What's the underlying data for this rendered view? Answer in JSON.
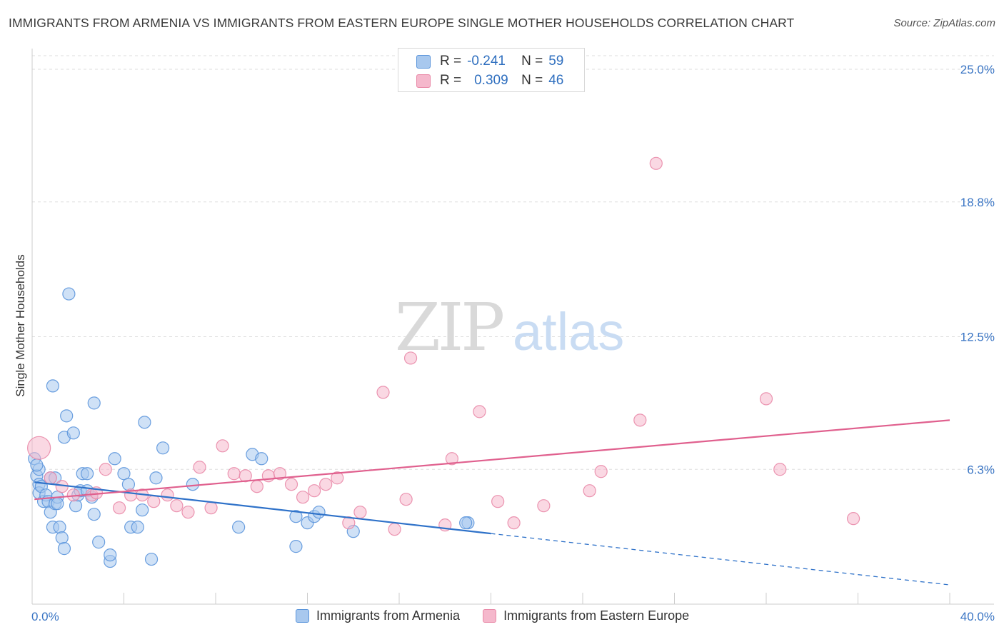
{
  "title": "IMMIGRANTS FROM ARMENIA VS IMMIGRANTS FROM EASTERN EUROPE SINGLE MOTHER HOUSEHOLDS CORRELATION CHART",
  "source": "Source: ZipAtlas.com",
  "watermark": {
    "zip": "ZIP",
    "atlas": "atlas"
  },
  "colors": {
    "blue_fill": "#a8c8ee",
    "blue_stroke": "#5b95db",
    "blue_line": "#2f72c9",
    "pink_fill": "#f5b8cc",
    "pink_stroke": "#e98aa8",
    "pink_line": "#e0608e",
    "axis_label": "#3a75c4",
    "grid": "#dddddd"
  },
  "legend_top": {
    "rows": [
      {
        "r_label": "R =",
        "r_value": "-0.241",
        "n_label": "N =",
        "n_value": "59"
      },
      {
        "r_label": "R =",
        "r_value": "0.309",
        "n_label": "N =",
        "n_value": "46"
      }
    ]
  },
  "legend_bottom": {
    "items": [
      {
        "label": "Immigrants from Armenia"
      },
      {
        "label": "Immigrants from Eastern Europe"
      }
    ]
  },
  "chart_data": {
    "type": "scatter",
    "ylabel": "Single Mother Households",
    "xlim": [
      0,
      40
    ],
    "ylim": [
      0,
      25
    ],
    "x_tick_labels": [
      {
        "value": 0,
        "label": "0.0%"
      },
      {
        "value": 40,
        "label": "40.0%"
      }
    ],
    "y_tick_labels": [
      {
        "value": 25.0,
        "label": "25.0%"
      },
      {
        "value": 18.8,
        "label": "18.8%"
      },
      {
        "value": 12.5,
        "label": "12.5%"
      },
      {
        "value": 6.3,
        "label": "6.3%"
      }
    ],
    "grid": true,
    "legend_position": "top-center",
    "series": [
      {
        "name": "Immigrants from Armenia",
        "color": "#5b95db",
        "points": [
          [
            0.1,
            6.8
          ],
          [
            0.2,
            6.0
          ],
          [
            0.3,
            5.6
          ],
          [
            0.3,
            5.2
          ],
          [
            0.3,
            6.3
          ],
          [
            0.4,
            5.5
          ],
          [
            0.5,
            4.8
          ],
          [
            0.6,
            5.1
          ],
          [
            0.7,
            4.8
          ],
          [
            0.8,
            4.3
          ],
          [
            0.8,
            5.9
          ],
          [
            0.9,
            3.6
          ],
          [
            0.9,
            10.2
          ],
          [
            1.0,
            5.9
          ],
          [
            1.0,
            4.7
          ],
          [
            1.1,
            5.0
          ],
          [
            1.1,
            4.7
          ],
          [
            1.2,
            3.6
          ],
          [
            1.3,
            3.1
          ],
          [
            1.4,
            2.6
          ],
          [
            1.4,
            7.8
          ],
          [
            1.5,
            8.8
          ],
          [
            1.6,
            14.5
          ],
          [
            1.8,
            8.0
          ],
          [
            1.9,
            4.6
          ],
          [
            2.0,
            5.1
          ],
          [
            2.1,
            5.3
          ],
          [
            2.2,
            6.1
          ],
          [
            2.4,
            5.3
          ],
          [
            2.4,
            6.1
          ],
          [
            2.6,
            5.0
          ],
          [
            2.7,
            4.2
          ],
          [
            2.7,
            9.4
          ],
          [
            2.9,
            2.9
          ],
          [
            3.4,
            2.0
          ],
          [
            3.4,
            2.3
          ],
          [
            3.6,
            6.8
          ],
          [
            4.0,
            6.1
          ],
          [
            4.2,
            5.6
          ],
          [
            4.3,
            3.6
          ],
          [
            4.6,
            3.6
          ],
          [
            4.8,
            4.4
          ],
          [
            4.9,
            8.5
          ],
          [
            5.2,
            2.1
          ],
          [
            5.4,
            5.9
          ],
          [
            5.7,
            7.3
          ],
          [
            7.0,
            5.6
          ],
          [
            9.0,
            3.6
          ],
          [
            9.6,
            7.0
          ],
          [
            10.0,
            6.8
          ],
          [
            11.5,
            2.7
          ],
          [
            11.5,
            4.1
          ],
          [
            12.0,
            3.8
          ],
          [
            12.3,
            4.1
          ],
          [
            12.5,
            4.3
          ],
          [
            14.0,
            3.4
          ],
          [
            19.0,
            3.8
          ],
          [
            18.9,
            3.8
          ],
          [
            0.2,
            6.5
          ]
        ]
      },
      {
        "name": "Immigrants from Eastern Europe",
        "color": "#e98aa8",
        "points": [
          [
            0.3,
            7.3
          ],
          [
            0.8,
            5.9
          ],
          [
            1.3,
            5.5
          ],
          [
            1.8,
            5.1
          ],
          [
            2.6,
            5.1
          ],
          [
            2.8,
            5.2
          ],
          [
            3.2,
            6.3
          ],
          [
            3.8,
            4.5
          ],
          [
            4.3,
            5.1
          ],
          [
            4.8,
            5.1
          ],
          [
            5.3,
            4.8
          ],
          [
            5.9,
            5.1
          ],
          [
            6.3,
            4.6
          ],
          [
            6.8,
            4.3
          ],
          [
            7.3,
            6.4
          ],
          [
            7.8,
            4.5
          ],
          [
            8.3,
            7.4
          ],
          [
            8.8,
            6.1
          ],
          [
            9.3,
            6.0
          ],
          [
            9.8,
            5.5
          ],
          [
            10.3,
            6.0
          ],
          [
            10.8,
            6.1
          ],
          [
            11.3,
            5.6
          ],
          [
            11.8,
            5.0
          ],
          [
            12.3,
            5.3
          ],
          [
            12.8,
            5.6
          ],
          [
            13.3,
            5.9
          ],
          [
            13.8,
            3.8
          ],
          [
            14.3,
            4.3
          ],
          [
            15.3,
            9.9
          ],
          [
            15.8,
            3.5
          ],
          [
            16.3,
            4.9
          ],
          [
            16.5,
            11.5
          ],
          [
            18.0,
            3.7
          ],
          [
            18.3,
            6.8
          ],
          [
            19.5,
            9.0
          ],
          [
            20.3,
            4.8
          ],
          [
            21.0,
            3.8
          ],
          [
            22.3,
            4.6
          ],
          [
            24.3,
            5.3
          ],
          [
            24.8,
            6.2
          ],
          [
            26.5,
            8.6
          ],
          [
            27.2,
            20.6
          ],
          [
            32.0,
            9.6
          ],
          [
            32.6,
            6.3
          ],
          [
            35.8,
            4.0
          ]
        ]
      }
    ],
    "trend_lines": [
      {
        "series": "Immigrants from Armenia",
        "from": [
          0.1,
          5.7
        ],
        "to": [
          20.0,
          3.3
        ],
        "dashed_from": [
          20.0,
          3.3
        ],
        "dashed_to": [
          40.0,
          0.9
        ]
      },
      {
        "series": "Immigrants from Eastern Europe",
        "from": [
          0.1,
          4.9
        ],
        "to": [
          40.0,
          8.6
        ]
      }
    ]
  }
}
